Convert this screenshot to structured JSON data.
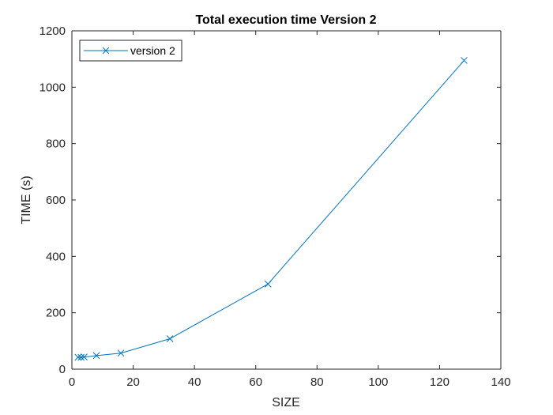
{
  "chart_data": {
    "type": "line",
    "title": "Total execution time Version 2",
    "xlabel": "SIZE",
    "ylabel": "TIME (s)",
    "xlim": [
      0,
      140
    ],
    "ylim": [
      0,
      1200
    ],
    "xticks": [
      "0",
      "20",
      "40",
      "60",
      "80",
      "100",
      "120",
      "140"
    ],
    "yticks": [
      "0",
      "200",
      "400",
      "600",
      "800",
      "1000",
      "1200"
    ],
    "grid": false,
    "legend_position": "top-left",
    "series": [
      {
        "name": "version 2",
        "color": "#0072BD",
        "marker": "x",
        "x": [
          2,
          3,
          4,
          8,
          16,
          32,
          64,
          128
        ],
        "y": [
          42,
          42,
          43,
          48,
          57,
          108,
          302,
          1095
        ]
      }
    ]
  }
}
